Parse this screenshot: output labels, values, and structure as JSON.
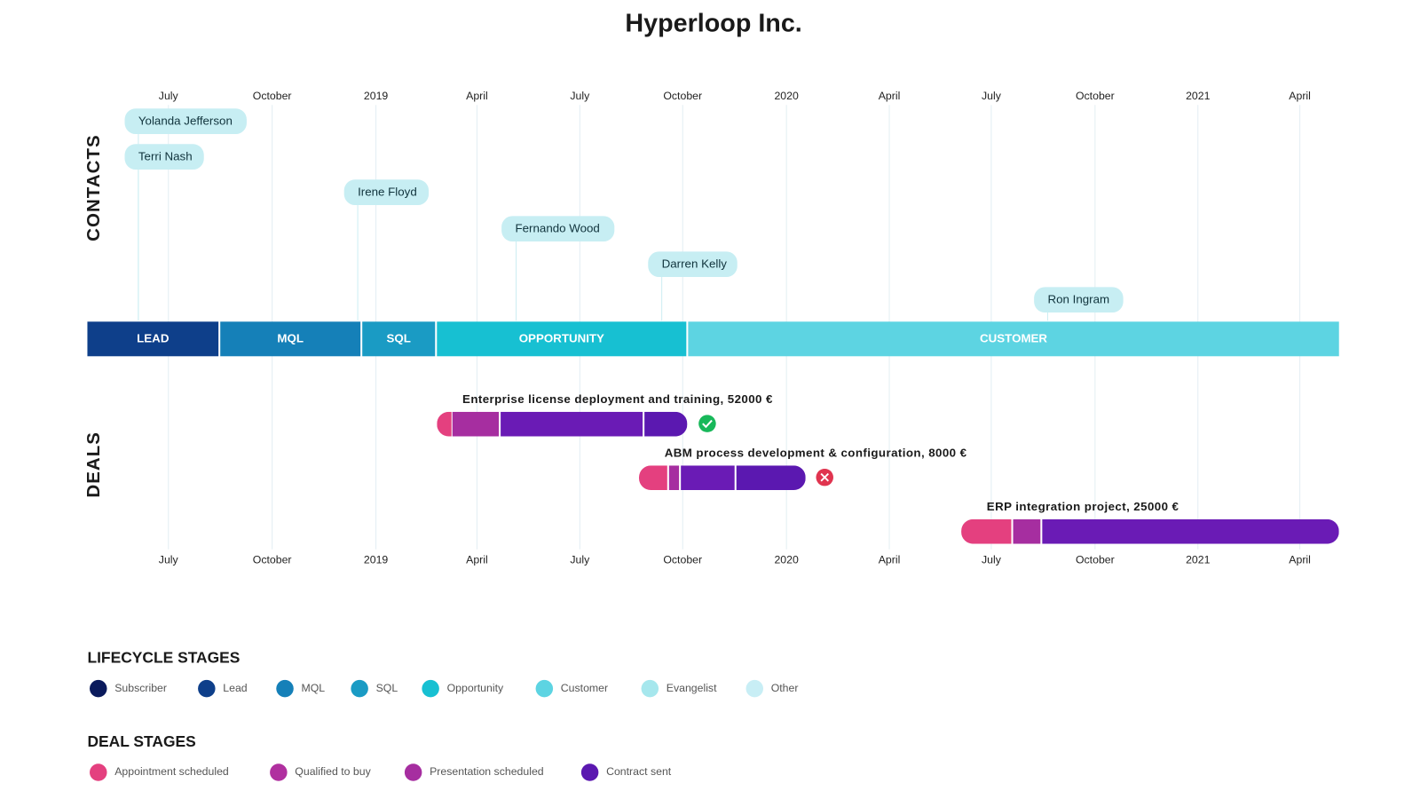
{
  "title": "Hyperloop Inc.",
  "axis_labels": [
    "July",
    "October",
    "2019",
    "April",
    "July",
    "October",
    "2020",
    "April",
    "July",
    "October",
    "2021",
    "April"
  ],
  "section_labels": {
    "contacts": "CONTACTS",
    "deals": "DEALS"
  },
  "contacts": [
    "Yolanda Jefferson",
    "Terri Nash",
    "Irene Floyd",
    "Fernando Wood",
    "Darren Kelly",
    "Ron Ingram"
  ],
  "lifecycle_bar": [
    {
      "label": "LEAD",
      "color": "#0e3f8a"
    },
    {
      "label": "MQL",
      "color": "#1580b8"
    },
    {
      "label": "SQL",
      "color": "#1a9bc4"
    },
    {
      "label": "OPPORTUNITY",
      "color": "#17c0d2"
    },
    {
      "label": "CUSTOMER",
      "color": "#5dd4e2"
    }
  ],
  "deals": [
    "Enterprise license deployment and training, 52000 €",
    "ABM process development & configuration, 8000 €",
    "ERP integration project, 25000 €"
  ],
  "legends": {
    "lifecycle": {
      "title": "LIFECYCLE STAGES",
      "items": [
        {
          "label": "Subscriber",
          "color": "#0a1a5c"
        },
        {
          "label": "Lead",
          "color": "#0e3f8a"
        },
        {
          "label": "MQL",
          "color": "#1580b8"
        },
        {
          "label": "SQL",
          "color": "#1a9bc4"
        },
        {
          "label": "Opportunity",
          "color": "#17c0d2"
        },
        {
          "label": "Customer",
          "color": "#5dd4e2"
        },
        {
          "label": "Evangelist",
          "color": "#a6e7ed"
        },
        {
          "label": "Other",
          "color": "#c8eef5"
        }
      ]
    },
    "deal": {
      "title": "DEAL STAGES",
      "items": [
        {
          "label": "Appointment scheduled",
          "color": "#e4407f"
        },
        {
          "label": "Qualified to buy",
          "color": "#b0309f"
        },
        {
          "label": "Presentation scheduled",
          "color": "#a62ea0"
        },
        {
          "label": "Contract sent",
          "color": "#5b18b0"
        }
      ]
    }
  }
}
